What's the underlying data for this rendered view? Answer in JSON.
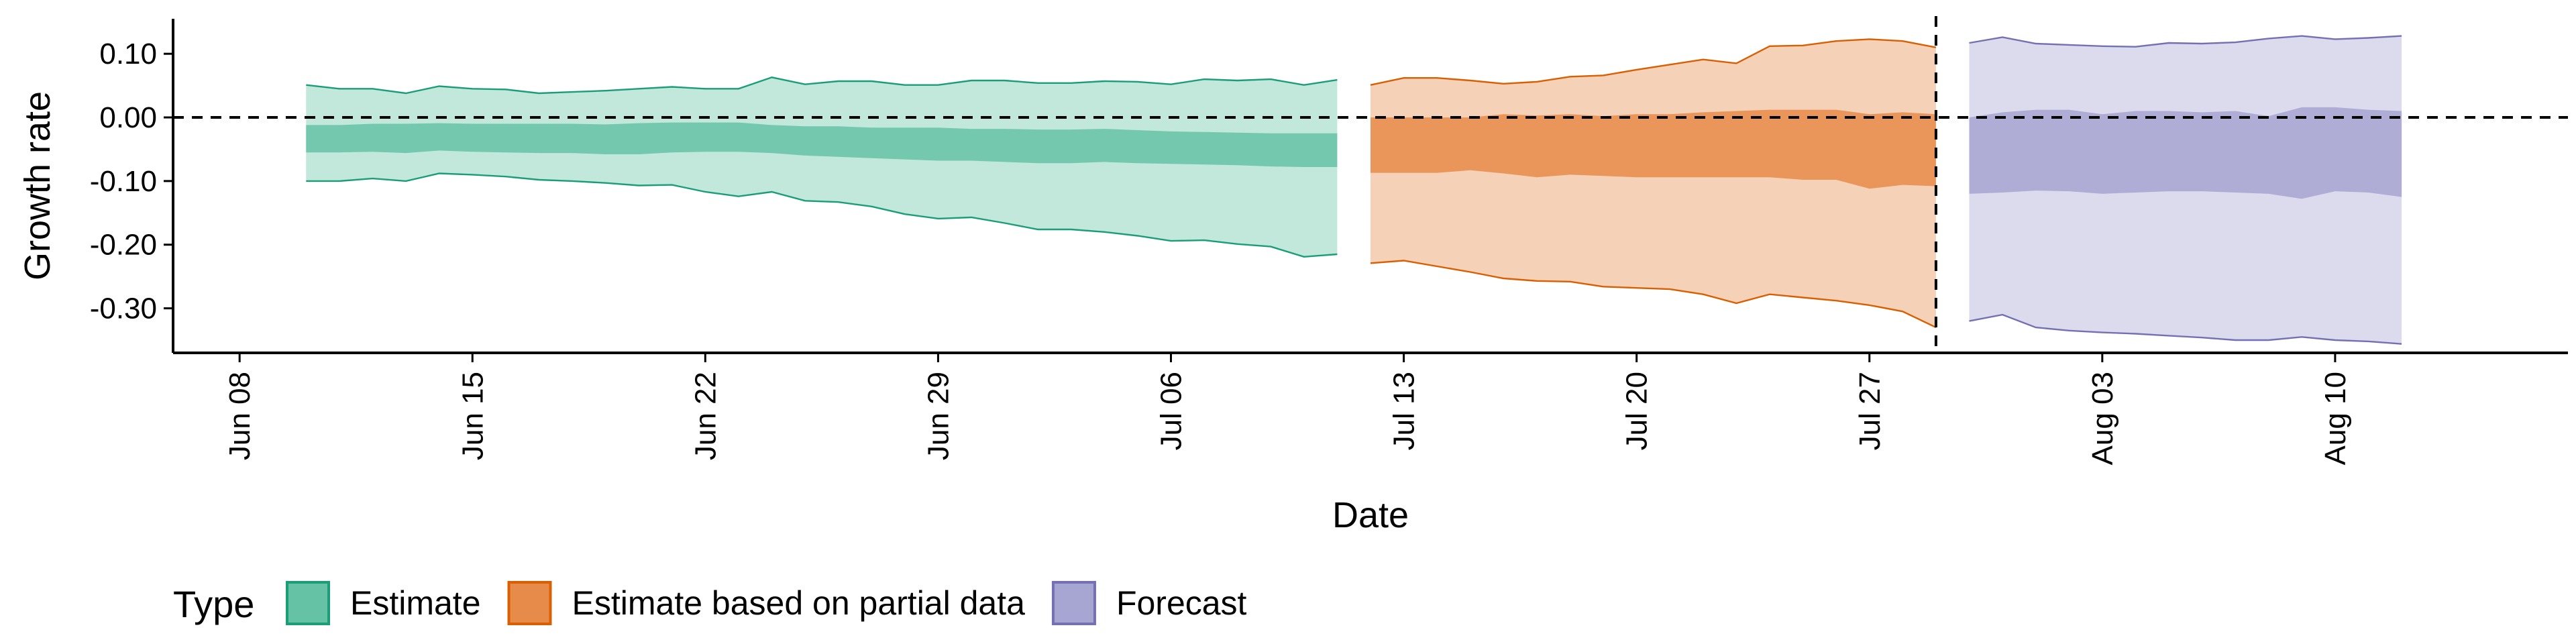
{
  "chart_data": {
    "type": "area",
    "xlabel": "Date",
    "ylabel": "Growth rate",
    "ylim": [
      -0.37,
      0.155
    ],
    "y_ticks": [
      0.1,
      0.0,
      -0.1,
      -0.2,
      -0.3
    ],
    "y_tick_labels": [
      "0.10",
      "0.00",
      "-0.10",
      "-0.20",
      "-0.30"
    ],
    "xlim": [
      "2020-06-06",
      "2020-08-17"
    ],
    "x_ticks": [
      "2020-06-08",
      "2020-06-15",
      "2020-06-22",
      "2020-06-29",
      "2020-07-06",
      "2020-07-13",
      "2020-07-20",
      "2020-07-27",
      "2020-08-03",
      "2020-08-10"
    ],
    "x_tick_labels": [
      "Jun 08",
      "Jun 15",
      "Jun 22",
      "Jun 29",
      "Jul 06",
      "Jul 13",
      "Jul 20",
      "Jul 27",
      "Aug 03",
      "Aug 10"
    ],
    "hline_y": 0.0,
    "vline_x": "2020-07-29",
    "grid": false,
    "legend": {
      "title": "Type",
      "position": "bottom-left",
      "entries": [
        "Estimate",
        "Estimate based on partial data",
        "Forecast"
      ]
    },
    "series": [
      {
        "name": "Estimate",
        "fill": "#66c2a5",
        "line": "#1b9e77",
        "x": [
          "2020-06-10",
          "2020-06-11",
          "2020-06-12",
          "2020-06-13",
          "2020-06-14",
          "2020-06-15",
          "2020-06-16",
          "2020-06-17",
          "2020-06-18",
          "2020-06-19",
          "2020-06-20",
          "2020-06-21",
          "2020-06-22",
          "2020-06-23",
          "2020-06-24",
          "2020-06-25",
          "2020-06-26",
          "2020-06-27",
          "2020-06-28",
          "2020-06-29",
          "2020-06-30",
          "2020-07-01",
          "2020-07-02",
          "2020-07-03",
          "2020-07-04",
          "2020-07-05",
          "2020-07-06",
          "2020-07-07",
          "2020-07-08",
          "2020-07-09",
          "2020-07-10",
          "2020-07-11"
        ],
        "upper90": [
          0.051,
          0.045,
          0.045,
          0.038,
          0.049,
          0.045,
          0.044,
          0.038,
          0.04,
          0.042,
          0.045,
          0.048,
          0.045,
          0.045,
          0.063,
          0.052,
          0.057,
          0.057,
          0.051,
          0.051,
          0.058,
          0.058,
          0.054,
          0.054,
          0.057,
          0.056,
          0.052,
          0.06,
          0.058,
          0.06,
          0.051,
          0.059
        ],
        "upper50": [
          -0.012,
          -0.012,
          -0.01,
          -0.01,
          -0.009,
          -0.01,
          -0.01,
          -0.01,
          -0.01,
          -0.011,
          -0.009,
          -0.008,
          -0.008,
          -0.008,
          -0.012,
          -0.014,
          -0.014,
          -0.016,
          -0.016,
          -0.016,
          -0.018,
          -0.018,
          -0.019,
          -0.019,
          -0.018,
          -0.02,
          -0.022,
          -0.023,
          -0.024,
          -0.025,
          -0.025,
          -0.025
        ],
        "lower50": [
          -0.055,
          -0.055,
          -0.054,
          -0.056,
          -0.052,
          -0.054,
          -0.055,
          -0.056,
          -0.056,
          -0.058,
          -0.058,
          -0.055,
          -0.054,
          -0.054,
          -0.056,
          -0.06,
          -0.062,
          -0.064,
          -0.066,
          -0.068,
          -0.068,
          -0.07,
          -0.072,
          -0.072,
          -0.07,
          -0.072,
          -0.073,
          -0.074,
          -0.075,
          -0.077,
          -0.078,
          -0.078
        ],
        "lower90": [
          -0.1,
          -0.1,
          -0.096,
          -0.1,
          -0.088,
          -0.09,
          -0.093,
          -0.098,
          -0.1,
          -0.103,
          -0.107,
          -0.106,
          -0.117,
          -0.124,
          -0.117,
          -0.131,
          -0.133,
          -0.14,
          -0.152,
          -0.159,
          -0.157,
          -0.166,
          -0.176,
          -0.176,
          -0.18,
          -0.186,
          -0.194,
          -0.193,
          -0.199,
          -0.203,
          -0.219,
          -0.215
        ]
      },
      {
        "name": "Estimate based on partial data",
        "fill": "#e78b4a",
        "line": "#d95f02",
        "x": [
          "2020-07-12",
          "2020-07-13",
          "2020-07-14",
          "2020-07-15",
          "2020-07-16",
          "2020-07-17",
          "2020-07-18",
          "2020-07-19",
          "2020-07-20",
          "2020-07-21",
          "2020-07-22",
          "2020-07-23",
          "2020-07-24",
          "2020-07-25",
          "2020-07-26",
          "2020-07-27",
          "2020-07-28",
          "2020-07-29"
        ],
        "upper90": [
          0.051,
          0.062,
          0.062,
          0.058,
          0.053,
          0.056,
          0.064,
          0.066,
          0.075,
          0.083,
          0.091,
          0.085,
          0.112,
          0.113,
          0.12,
          0.123,
          0.12,
          0.11
        ],
        "upper50": [
          0.0,
          0.0,
          0.0,
          0.0,
          0.005,
          0.003,
          0.005,
          0.002,
          0.005,
          0.005,
          0.008,
          0.01,
          0.012,
          0.012,
          0.012,
          0.005,
          0.008,
          0.005
        ],
        "lower50": [
          -0.087,
          -0.087,
          -0.087,
          -0.083,
          -0.088,
          -0.094,
          -0.09,
          -0.092,
          -0.094,
          -0.094,
          -0.094,
          -0.094,
          -0.094,
          -0.098,
          -0.098,
          -0.112,
          -0.106,
          -0.108
        ],
        "lower90": [
          -0.229,
          -0.225,
          -0.234,
          -0.243,
          -0.253,
          -0.257,
          -0.258,
          -0.266,
          -0.268,
          -0.27,
          -0.278,
          -0.292,
          -0.278,
          -0.283,
          -0.288,
          -0.295,
          -0.305,
          -0.33
        ]
      },
      {
        "name": "Forecast",
        "fill": "#a7a5d1",
        "line": "#7570b3",
        "x": [
          "2020-07-30",
          "2020-07-31",
          "2020-08-01",
          "2020-08-02",
          "2020-08-03",
          "2020-08-04",
          "2020-08-05",
          "2020-08-06",
          "2020-08-07",
          "2020-08-08",
          "2020-08-09",
          "2020-08-10",
          "2020-08-11",
          "2020-08-12"
        ],
        "upper90": [
          0.117,
          0.126,
          0.116,
          0.114,
          0.112,
          0.111,
          0.117,
          0.116,
          0.118,
          0.124,
          0.128,
          0.123,
          0.125,
          0.128
        ],
        "upper50": [
          0.0,
          0.008,
          0.012,
          0.012,
          0.005,
          0.01,
          0.01,
          0.008,
          0.01,
          0.002,
          0.016,
          0.016,
          0.012,
          0.01
        ],
        "lower50": [
          -0.12,
          -0.118,
          -0.115,
          -0.116,
          -0.12,
          -0.118,
          -0.116,
          -0.116,
          -0.118,
          -0.12,
          -0.128,
          -0.116,
          -0.118,
          -0.125
        ],
        "lower90": [
          -0.32,
          -0.31,
          -0.33,
          -0.335,
          -0.338,
          -0.34,
          -0.343,
          -0.346,
          -0.35,
          -0.35,
          -0.345,
          -0.35,
          -0.352,
          -0.356
        ]
      }
    ]
  }
}
